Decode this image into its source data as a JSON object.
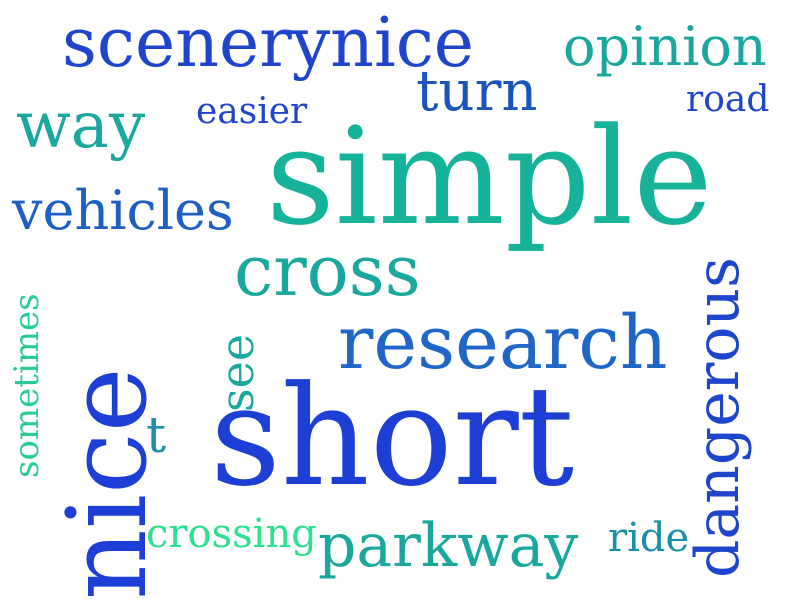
{
  "cloud": {
    "words": [
      {
        "id": "scenerynice",
        "text": "scenerynice",
        "color": "#1f45cc"
      },
      {
        "id": "opinion",
        "text": "opinion",
        "color": "#1aa79e"
      },
      {
        "id": "turn",
        "text": "turn",
        "color": "#1a55bd"
      },
      {
        "id": "road",
        "text": "road",
        "color": "#1f45cc"
      },
      {
        "id": "way",
        "text": "way",
        "color": "#1aa79e"
      },
      {
        "id": "easier",
        "text": "easier",
        "color": "#1f45cc"
      },
      {
        "id": "simple",
        "text": "simple",
        "color": "#16b39a"
      },
      {
        "id": "vehicles",
        "text": "vehicles",
        "color": "#1e5fc4"
      },
      {
        "id": "sometimes",
        "text": "sometimes",
        "color": "#27cc90"
      },
      {
        "id": "cross",
        "text": "cross",
        "color": "#1aa79e"
      },
      {
        "id": "nice",
        "text": "nice",
        "color": "#1d3fd6"
      },
      {
        "id": "see",
        "text": "see",
        "color": "#1aa79e"
      },
      {
        "id": "research",
        "text": "research",
        "color": "#1f66c6"
      },
      {
        "id": "dangerous",
        "text": "dangerous",
        "color": "#1f45cc"
      },
      {
        "id": "t",
        "text": "t",
        "color": "#1f8ca8"
      },
      {
        "id": "short",
        "text": "short",
        "color": "#1d3fd6"
      },
      {
        "id": "crossing",
        "text": "crossing",
        "color": "#2ee090"
      },
      {
        "id": "parkway",
        "text": "parkway",
        "color": "#1aa79e"
      },
      {
        "id": "ride",
        "text": "ride",
        "color": "#1a8fa8"
      }
    ]
  }
}
